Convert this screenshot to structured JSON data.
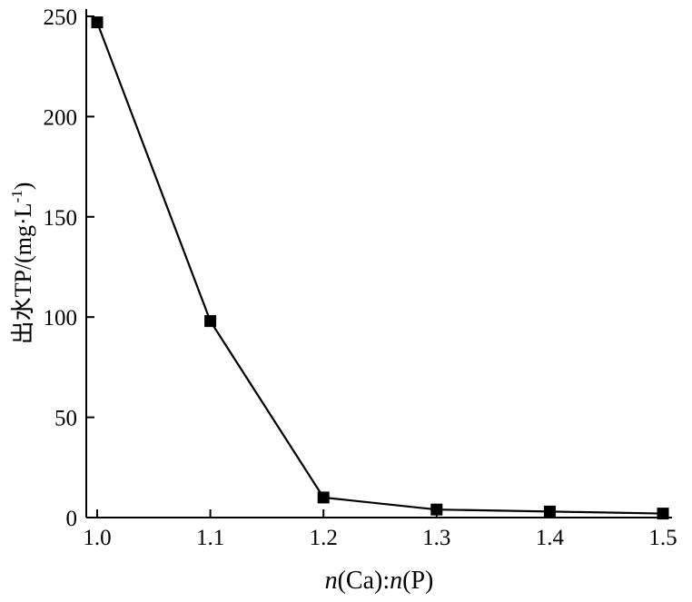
{
  "chart_data": {
    "type": "line",
    "x": [
      1.0,
      1.1,
      1.2,
      1.3,
      1.4,
      1.5
    ],
    "values": [
      247,
      98,
      10,
      4,
      3,
      2
    ],
    "series_name": "出水TP",
    "title": "",
    "xlabel_segments": [
      {
        "text": "n",
        "italic": true
      },
      {
        "text": "(Ca)",
        "italic": false
      },
      {
        "text": ":",
        "italic": false
      },
      {
        "text": "n",
        "italic": true
      },
      {
        "text": "(P)",
        "italic": false
      }
    ],
    "ylabel_parts": {
      "pre": "出水TP/(mg·L",
      "sup": "-1",
      "post": ")"
    },
    "ylabel_full": "出水TP/(mg·L⁻¹)",
    "xticks": [
      1.0,
      1.1,
      1.2,
      1.3,
      1.4,
      1.5
    ],
    "xtick_labels": [
      "1.0",
      "1.1",
      "1.2",
      "1.3",
      "1.4",
      "1.5"
    ],
    "yticks": [
      0,
      50,
      100,
      150,
      200,
      250
    ],
    "ytick_labels": [
      "0",
      "50",
      "100",
      "150",
      "200",
      "250"
    ],
    "xlim": [
      1.0,
      1.5
    ],
    "ylim": [
      0,
      250
    ],
    "grid": false,
    "legend": "none",
    "line_color": "#000000",
    "line_width": 2.2,
    "marker": "square",
    "marker_size": 13,
    "marker_color": "#000000",
    "axis_color": "#000000",
    "background": "#ffffff"
  }
}
